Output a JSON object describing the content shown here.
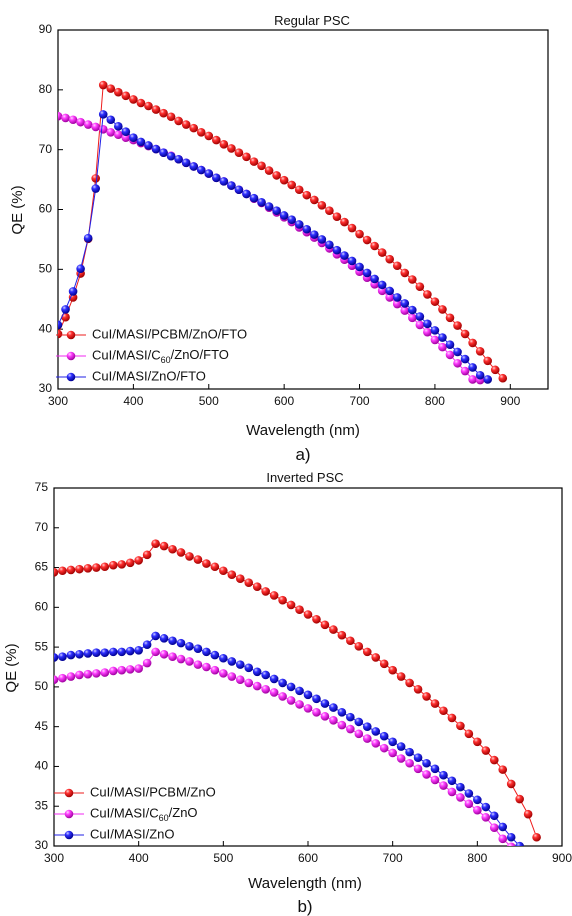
{
  "chart_data": [
    {
      "type": "line",
      "title": "Regular PSC",
      "xlabel": "Wavelength (nm)",
      "ylabel": "QE (%)",
      "panel_label": "a)",
      "xlim": [
        300,
        950
      ],
      "ylim": [
        30,
        90
      ],
      "xticks": [
        300,
        400,
        500,
        600,
        700,
        800,
        900
      ],
      "yticks": [
        30,
        40,
        50,
        60,
        70,
        80,
        90
      ],
      "legend_position": "bottom-left",
      "series": [
        {
          "name": "CuI/MASI/PCBM/ZnO/FTO",
          "color": "#ee1c1c",
          "x": [
            300,
            310,
            320,
            330,
            340,
            350,
            360,
            370,
            380,
            390,
            400,
            410,
            420,
            430,
            440,
            450,
            460,
            470,
            480,
            490,
            500,
            510,
            520,
            530,
            540,
            550,
            560,
            570,
            580,
            590,
            600,
            610,
            620,
            630,
            640,
            650,
            660,
            670,
            680,
            690,
            700,
            710,
            720,
            730,
            740,
            750,
            760,
            770,
            780,
            790,
            800,
            810,
            820,
            830,
            840,
            850,
            860,
            870,
            880,
            890
          ],
          "y": [
            39.2,
            42.0,
            45.3,
            49.3,
            55.1,
            65.2,
            80.8,
            80.2,
            79.6,
            79.0,
            78.4,
            77.8,
            77.3,
            76.7,
            76.1,
            75.5,
            74.8,
            74.2,
            73.6,
            72.9,
            72.3,
            71.6,
            70.9,
            70.2,
            69.5,
            68.8,
            68.0,
            67.3,
            66.5,
            65.7,
            64.9,
            64.1,
            63.3,
            62.4,
            61.6,
            60.7,
            59.8,
            58.8,
            57.9,
            56.9,
            55.9,
            54.9,
            53.9,
            52.8,
            51.7,
            50.6,
            49.4,
            48.3,
            47.1,
            45.8,
            44.6,
            43.3,
            41.9,
            40.6,
            39.2,
            37.7,
            36.3,
            34.7,
            33.2,
            31.8
          ]
        },
        {
          "name": "CuI/MASI/C60/ZnO/FTO",
          "color": "#f02af0",
          "x": [
            300,
            310,
            320,
            330,
            340,
            350,
            360,
            370,
            380,
            390,
            400,
            410,
            420,
            430,
            440,
            450,
            460,
            470,
            480,
            490,
            500,
            510,
            520,
            530,
            540,
            550,
            560,
            570,
            580,
            590,
            600,
            610,
            620,
            630,
            640,
            650,
            660,
            670,
            680,
            690,
            700,
            710,
            720,
            730,
            740,
            750,
            760,
            770,
            780,
            790,
            800,
            810,
            820,
            830,
            840,
            850,
            860
          ],
          "y": [
            75.6,
            75.3,
            75.0,
            74.6,
            74.2,
            73.8,
            73.4,
            72.9,
            72.5,
            72.0,
            71.6,
            71.1,
            70.6,
            70.1,
            69.5,
            69.0,
            68.4,
            67.8,
            67.2,
            66.6,
            66.0,
            65.3,
            64.7,
            64.0,
            63.3,
            62.6,
            61.8,
            61.1,
            60.3,
            59.5,
            58.7,
            57.9,
            57.0,
            56.2,
            55.3,
            54.4,
            53.5,
            52.5,
            51.6,
            50.6,
            49.6,
            48.6,
            47.5,
            46.4,
            45.3,
            44.2,
            43.1,
            41.9,
            40.7,
            39.5,
            38.2,
            37.0,
            35.7,
            34.3,
            33.0,
            31.6,
            31.5
          ]
        },
        {
          "name": "CuI/MASI/ZnO/FTO",
          "color": "#2020e6",
          "x": [
            300,
            310,
            320,
            330,
            340,
            350,
            360,
            370,
            380,
            390,
            400,
            410,
            420,
            430,
            440,
            450,
            460,
            470,
            480,
            490,
            500,
            510,
            520,
            530,
            540,
            550,
            560,
            570,
            580,
            590,
            600,
            610,
            620,
            630,
            640,
            650,
            660,
            670,
            680,
            690,
            700,
            710,
            720,
            730,
            740,
            750,
            760,
            770,
            780,
            790,
            800,
            810,
            820,
            830,
            840,
            850,
            860,
            870
          ],
          "y": [
            40.7,
            43.3,
            46.3,
            50.1,
            55.2,
            63.5,
            75.9,
            75.0,
            73.9,
            73.0,
            72.0,
            71.3,
            70.7,
            70.1,
            69.5,
            68.9,
            68.4,
            67.8,
            67.2,
            66.6,
            66.0,
            65.3,
            64.7,
            64.0,
            63.3,
            62.6,
            61.9,
            61.2,
            60.5,
            59.8,
            59.0,
            58.3,
            57.5,
            56.7,
            55.8,
            55.0,
            54.1,
            53.2,
            52.3,
            51.4,
            50.4,
            49.4,
            48.4,
            47.4,
            46.4,
            45.3,
            44.3,
            43.2,
            42.1,
            40.9,
            39.8,
            38.6,
            37.4,
            36.2,
            35.0,
            33.6,
            32.3,
            31.6
          ]
        }
      ]
    },
    {
      "type": "line",
      "title": "Inverted PSC",
      "xlabel": "Wavelength (nm)",
      "ylabel": "QE (%)",
      "panel_label": "b)",
      "xlim": [
        300,
        900
      ],
      "ylim": [
        30,
        75
      ],
      "xticks": [
        300,
        400,
        500,
        600,
        700,
        800,
        900
      ],
      "yticks": [
        30,
        35,
        40,
        45,
        50,
        55,
        60,
        65,
        70,
        75
      ],
      "legend_position": "bottom-left",
      "series": [
        {
          "name": "CuI/MASI/PCBM/ZnO",
          "color": "#ee1c1c",
          "x": [
            300,
            310,
            320,
            330,
            340,
            350,
            360,
            370,
            380,
            390,
            400,
            410,
            420,
            430,
            440,
            450,
            460,
            470,
            480,
            490,
            500,
            510,
            520,
            530,
            540,
            550,
            560,
            570,
            580,
            590,
            600,
            610,
            620,
            630,
            640,
            650,
            660,
            670,
            680,
            690,
            700,
            710,
            720,
            730,
            740,
            750,
            760,
            770,
            780,
            790,
            800,
            810,
            820,
            830,
            840,
            850,
            860,
            870
          ],
          "y": [
            64.4,
            64.6,
            64.7,
            64.8,
            64.9,
            65.0,
            65.1,
            65.3,
            65.4,
            65.6,
            65.9,
            66.6,
            68.0,
            67.7,
            67.3,
            66.9,
            66.4,
            66.0,
            65.5,
            65.1,
            64.6,
            64.1,
            63.6,
            63.1,
            62.6,
            62.0,
            61.5,
            60.9,
            60.3,
            59.7,
            59.1,
            58.5,
            57.8,
            57.2,
            56.5,
            55.8,
            55.1,
            54.4,
            53.7,
            52.9,
            52.1,
            51.3,
            50.5,
            49.7,
            48.8,
            47.9,
            47.0,
            46.1,
            45.1,
            44.1,
            43.1,
            42.0,
            40.8,
            39.6,
            37.8,
            35.9,
            34.0,
            31.1
          ]
        },
        {
          "name": "CuI/MASI/C60/ZnO",
          "color": "#f02af0",
          "x": [
            300,
            310,
            320,
            330,
            340,
            350,
            360,
            370,
            380,
            390,
            400,
            410,
            420,
            430,
            440,
            450,
            460,
            470,
            480,
            490,
            500,
            510,
            520,
            530,
            540,
            550,
            560,
            570,
            580,
            590,
            600,
            610,
            620,
            630,
            640,
            650,
            660,
            670,
            680,
            690,
            700,
            710,
            720,
            730,
            740,
            750,
            760,
            770,
            780,
            790,
            800,
            810,
            820,
            830,
            840
          ],
          "y": [
            50.9,
            51.1,
            51.3,
            51.5,
            51.6,
            51.7,
            51.8,
            52.0,
            52.1,
            52.2,
            52.3,
            53.0,
            54.4,
            54.1,
            53.8,
            53.5,
            53.2,
            52.8,
            52.5,
            52.1,
            51.7,
            51.3,
            50.9,
            50.5,
            50.1,
            49.7,
            49.3,
            48.8,
            48.3,
            47.8,
            47.3,
            46.8,
            46.3,
            45.8,
            45.2,
            44.7,
            44.1,
            43.5,
            42.9,
            42.3,
            41.7,
            41.0,
            40.4,
            39.7,
            39.0,
            38.3,
            37.6,
            36.8,
            36.1,
            35.3,
            34.5,
            33.6,
            32.3,
            30.9,
            29.9
          ]
        },
        {
          "name": "CuI/MASI/ZnO",
          "color": "#2020e6",
          "x": [
            300,
            310,
            320,
            330,
            340,
            350,
            360,
            370,
            380,
            390,
            400,
            410,
            420,
            430,
            440,
            450,
            460,
            470,
            480,
            490,
            500,
            510,
            520,
            530,
            540,
            550,
            560,
            570,
            580,
            590,
            600,
            610,
            620,
            630,
            640,
            650,
            660,
            670,
            680,
            690,
            700,
            710,
            720,
            730,
            740,
            750,
            760,
            770,
            780,
            790,
            800,
            810,
            820,
            830,
            840,
            850
          ],
          "y": [
            53.7,
            53.8,
            54.0,
            54.1,
            54.2,
            54.3,
            54.3,
            54.4,
            54.4,
            54.5,
            54.6,
            55.3,
            56.4,
            56.1,
            55.8,
            55.5,
            55.1,
            54.8,
            54.4,
            54.0,
            53.6,
            53.2,
            52.8,
            52.4,
            51.9,
            51.5,
            51.0,
            50.5,
            50.0,
            49.5,
            49.0,
            48.5,
            47.9,
            47.4,
            46.8,
            46.2,
            45.6,
            45.0,
            44.4,
            43.8,
            43.1,
            42.5,
            41.8,
            41.1,
            40.4,
            39.7,
            38.9,
            38.2,
            37.4,
            36.6,
            35.8,
            34.9,
            33.8,
            32.4,
            31.1,
            30.0
          ]
        }
      ]
    }
  ]
}
